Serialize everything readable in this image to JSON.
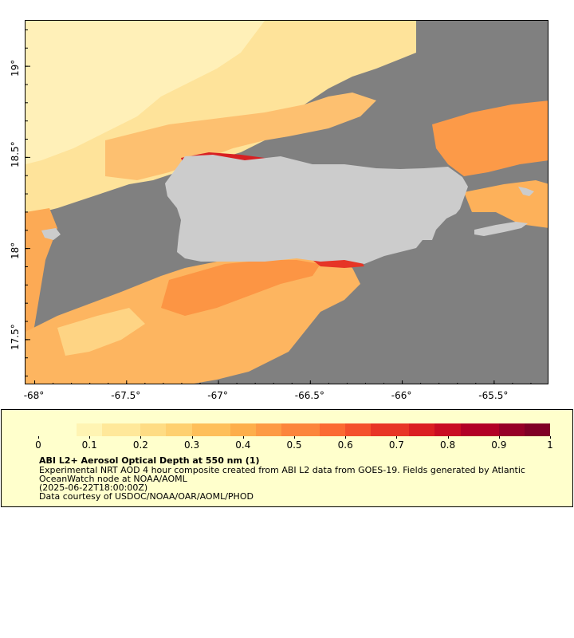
{
  "map": {
    "colors": {
      "land": "#cccccc",
      "nodata": "#808080",
      "border": "#000000"
    },
    "lon_range": [
      -68.05,
      -65.2
    ],
    "lat_range": [
      17.25,
      19.25
    ],
    "lon_ticks": [
      "-68°",
      "-67.5°",
      "-67°",
      "-66.5°",
      "-66°",
      "-65.5°"
    ],
    "lon_tick_values": [
      -68,
      -67.5,
      -67,
      -66.5,
      -66,
      -65.5
    ],
    "lat_ticks": [
      "19°",
      "18.5°",
      "18°",
      "17.5°"
    ],
    "lat_tick_values": [
      19,
      18.5,
      18,
      17.5
    ]
  },
  "legend": {
    "title": "ABI L2+ Aerosol Optical Depth at 550 nm (1)",
    "line1": "Experimental NRT AOD 4 hour composite created from ABI L2 data from GOES-19. Fields generated by Atlantic",
    "line2": "OceanWatch node at NOAA/AOML",
    "line3": "(2025-06-22T18:00:00Z)",
    "line4": "Data courtesy of USDOC/NOAA/OAR/AOML/PHOD",
    "ticks": [
      "0",
      "0.1",
      "0.2",
      "0.3",
      "0.4",
      "0.5",
      "0.6",
      "0.7",
      "0.8",
      "0.9",
      "1"
    ],
    "colorscale": [
      "#ffffcc",
      "#fff4b3",
      "#ffe89a",
      "#fedc84",
      "#fed070",
      "#febf5a",
      "#fdae4b",
      "#fd9a44",
      "#fc853c",
      "#fb6a33",
      "#f4502c",
      "#e83526",
      "#db1e22",
      "#c90c23",
      "#b20026",
      "#960027",
      "#800026"
    ]
  }
}
